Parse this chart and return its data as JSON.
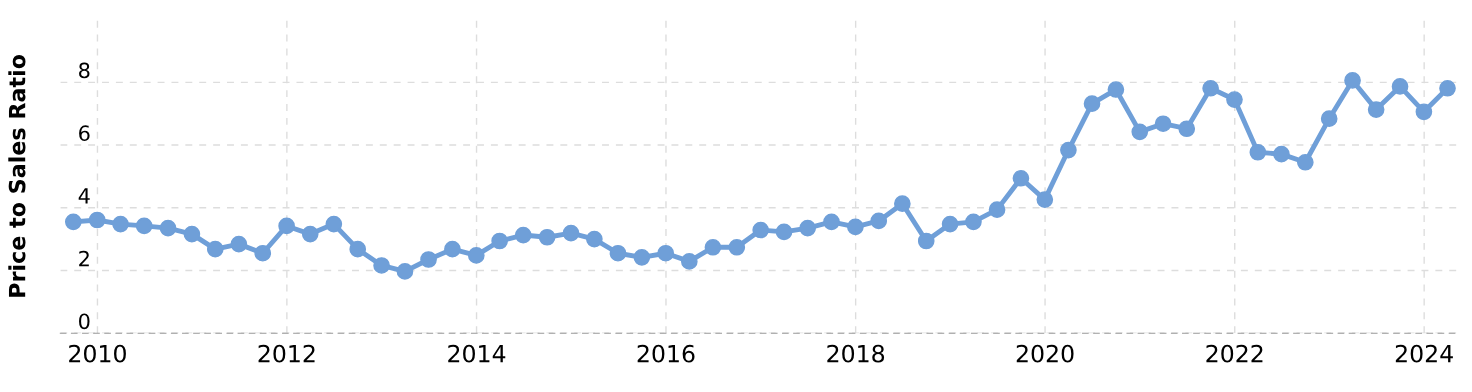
{
  "chart_data": {
    "type": "line",
    "ylabel": "Price to Sales Ratio",
    "x": [
      "2009-09-30",
      "2009-12-31",
      "2010-03-31",
      "2010-06-30",
      "2010-09-30",
      "2010-12-31",
      "2011-03-31",
      "2011-06-30",
      "2011-09-30",
      "2011-12-31",
      "2012-03-31",
      "2012-06-30",
      "2012-09-30",
      "2012-12-31",
      "2013-03-31",
      "2013-06-30",
      "2013-09-30",
      "2013-12-31",
      "2014-03-31",
      "2014-06-30",
      "2014-09-30",
      "2014-12-31",
      "2015-03-31",
      "2015-06-30",
      "2015-09-30",
      "2015-12-31",
      "2016-03-31",
      "2016-06-30",
      "2016-09-30",
      "2016-12-31",
      "2017-03-31",
      "2017-06-30",
      "2017-09-30",
      "2017-12-31",
      "2018-03-31",
      "2018-06-30",
      "2018-09-30",
      "2018-12-31",
      "2019-03-31",
      "2019-06-30",
      "2019-09-30",
      "2019-12-31",
      "2020-03-31",
      "2020-06-30",
      "2020-09-30",
      "2020-12-31",
      "2021-03-31",
      "2021-06-30",
      "2021-09-30",
      "2021-12-31",
      "2022-03-31",
      "2022-06-30",
      "2022-09-30",
      "2022-12-31",
      "2023-03-31",
      "2023-06-30",
      "2023-09-30",
      "2023-12-31",
      "2024-03-31"
    ],
    "series": [
      {
        "color": "#6f9fd8",
        "values": [
          3.55,
          3.61,
          3.48,
          3.42,
          3.35,
          3.16,
          2.68,
          2.84,
          2.55,
          3.42,
          3.16,
          3.48,
          2.68,
          2.16,
          1.97,
          2.35,
          2.68,
          2.48,
          2.94,
          3.13,
          3.06,
          3.19,
          3.0,
          2.55,
          2.42,
          2.55,
          2.29,
          2.74,
          2.74,
          3.29,
          3.23,
          3.35,
          3.55,
          3.39,
          3.58,
          4.13,
          2.94,
          3.48,
          3.55,
          3.94,
          4.94,
          4.26,
          5.84,
          7.32,
          7.77,
          6.42,
          6.68,
          6.52,
          7.81,
          7.45,
          5.77,
          5.71,
          5.45,
          6.84,
          8.06,
          7.13,
          7.87,
          7.06,
          7.81
        ]
      }
    ],
    "xlim": [
      "2009-08-11",
      "2024-05-19"
    ],
    "xticks": [
      "2010",
      "2012",
      "2014",
      "2016",
      "2018",
      "2020",
      "2022",
      "2024"
    ],
    "ylim": [
      0,
      10
    ],
    "yticks": [
      0,
      2,
      4,
      6,
      8
    ],
    "grid": true,
    "marker": "circle",
    "line_style": "solid"
  }
}
